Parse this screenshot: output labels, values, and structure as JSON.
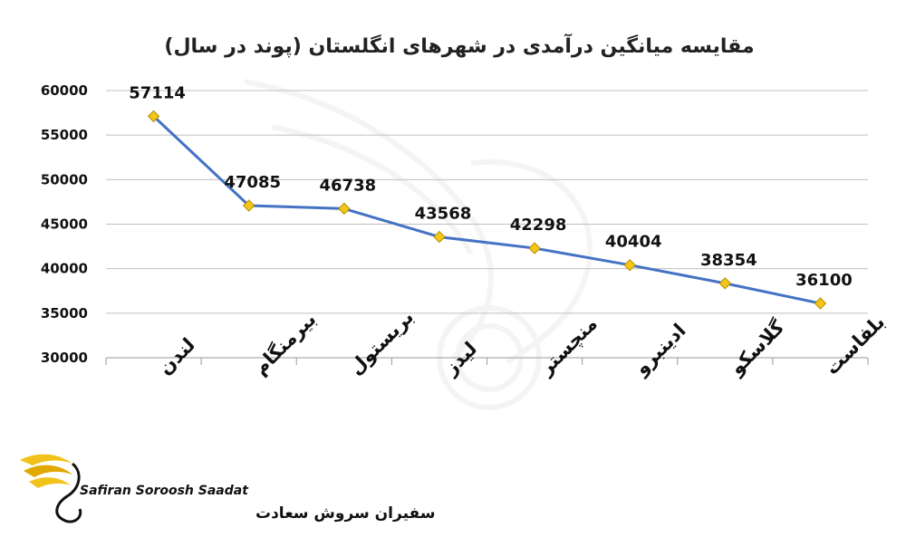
{
  "chart_data": {
    "type": "line",
    "title": "مقایسه میانگین درآمدی در شهرهای انگلستان (پوند در سال)",
    "xlabel": "",
    "ylabel": "",
    "categories": [
      "لندن",
      "بیرمنگام",
      "بریستول",
      "لیدز",
      "منچستر",
      "ادینبرو",
      "گلاسکو",
      "بلفاست"
    ],
    "series": [
      {
        "values": [
          57114,
          47085,
          46738,
          43568,
          42298,
          40404,
          38354,
          36100
        ]
      }
    ],
    "data_labels": [
      "57114",
      "47085",
      "46738",
      "43568",
      "42298",
      "40404",
      "38354",
      "36100"
    ],
    "ylim": [
      30000,
      60000
    ],
    "yticks": [
      "30000",
      "35000",
      "40000",
      "45000",
      "50000",
      "55000",
      "60000"
    ],
    "grid": true,
    "legend": "none",
    "line_color": "#4472c4",
    "marker_color": "#f5c518"
  },
  "logo": {
    "name_en": "Safiran Soroosh Saadat",
    "name_fa": "سفیران سروش سعادت",
    "brand_color": "#f2c21a"
  }
}
